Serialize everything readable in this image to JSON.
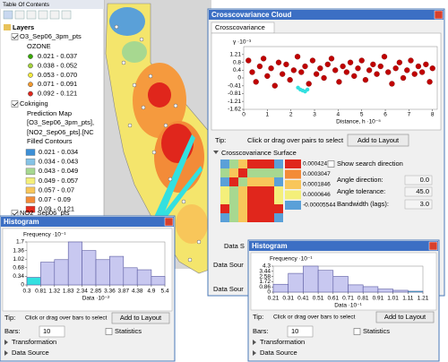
{
  "toc": {
    "title": "Table Of Contents",
    "layers": "Layers",
    "o3_layer": "O3_Sep06_3pm_pts",
    "o3_field": "OZONE",
    "ozone_classes": [
      {
        "label": "0.021 - 0.037",
        "color": "#38a800"
      },
      {
        "label": "0.038 - 0.052",
        "color": "#a3d13b"
      },
      {
        "label": "0.053 - 0.070",
        "color": "#f2ea3c"
      },
      {
        "label": "0.071 - 0.091",
        "color": "#f59a2e"
      },
      {
        "label": "0.092 - 0.121",
        "color": "#e0261c"
      }
    ],
    "cokriging": "Cokriging",
    "prediction_map": "Prediction Map",
    "source_1": "[O3_Sep06_3pm_pts],",
    "source_2": "[NO2_Sep06_pts].[NC",
    "filled_contours": "Filled Contours",
    "contour_classes": [
      {
        "label": "0.021 - 0.034",
        "color": "#3d8fd6"
      },
      {
        "label": "0.034 - 0.043",
        "color": "#86c3e6"
      },
      {
        "label": "0.043 - 0.049",
        "color": "#a7d890"
      },
      {
        "label": "0.049 - 0.057",
        "color": "#f4ef7a"
      },
      {
        "label": "0.057 - 0.07",
        "color": "#f8c65a"
      },
      {
        "label": "0.07 - 0.09",
        "color": "#f38b38"
      },
      {
        "label": "0.09 - 0.121",
        "color": "#e52b1e"
      }
    ],
    "no2_layer": "NO2_Sep06_pts"
  },
  "cloud_window": {
    "title": "Crosscovariance Cloud",
    "tab": "Crosscovariance",
    "tip_label": "Tip:",
    "tip": "Click or drag over pairs to select",
    "button": "Add to Layout",
    "surface_header": "Crosscovariance Surface",
    "surface_values": [
      "0.0004247",
      "0.0003047",
      "0.0001846",
      "0.0000646",
      "-0.00005544"
    ],
    "show_search": "Show search direction",
    "angle_direction": "Angle direction:",
    "angle_direction_value": "0.0",
    "angle_tolerance": "Angle tolerance:",
    "angle_tolerance_value": "45.0",
    "bandwidth": "Bandwidth (lags):",
    "bandwidth_value": "3.0",
    "data_source_a": "Data S",
    "data_source_b": "Data Sour",
    "data_source_c": "Data Sour"
  },
  "histogram_left": {
    "title": "Histogram",
    "tip_label": "Tip:",
    "tip": "Click or drag over bars to select",
    "button": "Add to Layout",
    "bars_label": "Bars:",
    "bars_value": "10",
    "statistics": "Statistics",
    "transformation": "Transformation",
    "data_source": "Data Source"
  },
  "histogram_right": {
    "title": "Histogram",
    "tip_label": "Tip:",
    "tip": "Click or drag over bars to select",
    "button": "Add to Layout",
    "bars_label": "Bars:",
    "bars_value": "10",
    "statistics": "Statistics",
    "transformation": "Transformation",
    "data_source": "Data Source"
  },
  "chart_data": [
    {
      "type": "scatter",
      "ylabel": "γ ·10⁻³",
      "xlabel": "Distance, h ·10⁻⁵",
      "series": [
        {
          "color": "#c00000",
          "x": [
            0.2,
            0.36,
            0.52,
            0.68,
            0.84,
            1.0,
            1.16,
            1.32,
            1.48,
            1.64,
            1.8,
            1.96,
            2.12,
            2.28,
            2.44,
            2.6,
            2.76,
            2.92,
            3.08,
            3.24,
            3.4,
            3.56,
            3.72,
            3.88,
            4.04,
            4.2,
            4.36,
            4.52,
            4.68,
            4.84,
            5.0,
            5.16,
            5.32,
            5.48,
            5.64,
            5.8,
            5.96,
            6.12,
            6.28,
            6.44,
            6.6,
            6.76,
            6.92,
            7.08,
            7.24,
            7.4,
            7.56,
            7.72,
            7.88,
            8.0
          ],
          "y": [
            0.9,
            0.3,
            -0.2,
            0.6,
            1.0,
            0.1,
            0.5,
            -0.4,
            0.8,
            0.2,
            0.7,
            -0.1,
            0.4,
            1.1,
            0.3,
            0.6,
            -0.3,
            0.9,
            0.2,
            0.5,
            0.0,
            0.7,
            1.0,
            0.4,
            -0.2,
            0.6,
            0.3,
            0.8,
            0.1,
            0.5,
            0.9,
            -0.1,
            0.4,
            0.7,
            0.2,
            0.6,
            1.1,
            0.3,
            -0.3,
            0.5,
            0.8,
            0.0,
            0.4,
            0.9,
            0.2,
            0.6,
            0.3,
            0.7,
            -0.2,
            0.5
          ]
        },
        {
          "color": "#33e0e0",
          "x": [
            2.3,
            2.4,
            2.5,
            2.6,
            2.7
          ],
          "y": [
            -0.5,
            -0.6,
            -0.65,
            -0.7,
            -0.6
          ]
        }
      ],
      "xlim": [
        0,
        8.2
      ],
      "xticks": [
        0,
        1,
        2,
        3,
        4,
        5,
        6,
        7,
        8
      ],
      "ylim": [
        -1.62,
        1.62
      ],
      "yticks": [
        1.21,
        0.8,
        0.4,
        0,
        -0.41,
        -0.81,
        -1.21,
        -1.62
      ]
    },
    {
      "type": "histogram",
      "ylabel": "Frequency ·10⁻¹",
      "xlabel": "Data ·10⁻²",
      "bins": [
        0.3,
        0.81,
        1.32,
        1.83,
        2.34,
        2.85,
        3.36,
        3.87,
        4.38,
        4.9,
        5.4
      ],
      "values": [
        0.3,
        0.9,
        1.0,
        1.7,
        1.36,
        1.0,
        1.13,
        0.68,
        0.6,
        0.34
      ],
      "xticks": [
        0.3,
        0.81,
        1.32,
        1.83,
        2.34,
        2.85,
        3.36,
        3.87,
        4.38,
        4.9,
        5.4
      ],
      "ylim": [
        0,
        1.7
      ],
      "yticks": [
        0,
        0.34,
        0.68,
        1.02,
        1.36,
        1.7
      ],
      "color": "#c8c8f0",
      "selected_color": "#33e0e0",
      "selected": [
        0
      ]
    },
    {
      "type": "histogram",
      "ylabel": "Frequency ·10⁻¹",
      "xlabel": "Data ·10⁻¹",
      "bins": [
        0.21,
        0.31,
        0.41,
        0.51,
        0.61,
        0.71,
        0.81,
        0.91,
        1.01,
        1.11,
        1.21
      ],
      "values": [
        1.3,
        3.1,
        4.3,
        3.6,
        2.6,
        1.2,
        0.9,
        0.5,
        0.3,
        0.15
      ],
      "xticks": [
        0.21,
        0.31,
        0.41,
        0.51,
        0.61,
        0.71,
        0.81,
        0.91,
        1.01,
        1.11,
        1.21
      ],
      "ylim": [
        0,
        4.3
      ],
      "yticks": [
        0,
        0.86,
        1.72,
        2.58,
        3.44,
        4.3
      ],
      "color": "#c8c8f0",
      "selected_color": "#33e0e0",
      "selected": [
        9
      ]
    }
  ]
}
